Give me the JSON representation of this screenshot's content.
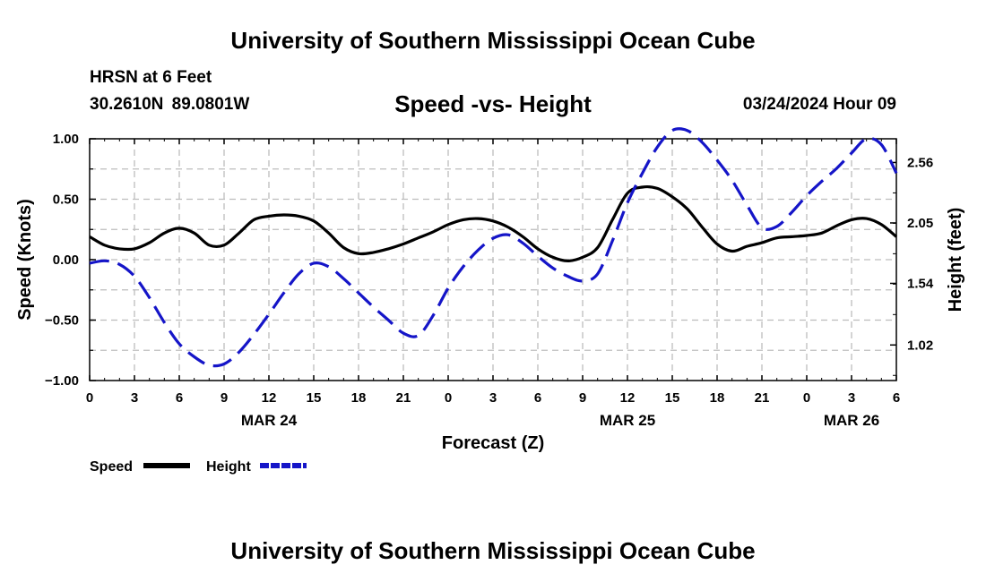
{
  "header": {
    "title": "University of Southern Mississippi Ocean Cube",
    "station": "HRSN at 6 Feet",
    "coords": "30.2610N  89.0801W",
    "subtitle": "Speed -vs- Height",
    "datetime": "03/24/2024 Hour 09",
    "footer_title": "University of Southern Mississippi Ocean Cube"
  },
  "chart_data": {
    "type": "line",
    "xlabel": "Forecast (Z)",
    "ylabel_left": "Speed (Knots)",
    "ylabel_right": "Height (feet)",
    "x_range_hours": [
      0,
      54
    ],
    "x_tick_hours": [
      0,
      3,
      6,
      9,
      12,
      15,
      18,
      21,
      24,
      27,
      30,
      33,
      36,
      39,
      42,
      45,
      48,
      51,
      54
    ],
    "x_tick_labels": [
      "0",
      "3",
      "6",
      "9",
      "12",
      "15",
      "18",
      "21",
      "0",
      "3",
      "6",
      "9",
      "12",
      "15",
      "18",
      "21",
      "0",
      "3",
      "6"
    ],
    "date_labels": [
      {
        "hour": 12,
        "label": "MAR 24"
      },
      {
        "hour": 36,
        "label": "MAR 25"
      },
      {
        "hour": 51,
        "label": "MAR 26"
      }
    ],
    "ylim_left": [
      -1.0,
      1.0
    ],
    "y_ticks_left": [
      -1.0,
      -0.5,
      0.0,
      0.5,
      1.0
    ],
    "y_tick_labels_left": [
      "−1.00",
      "−0.50",
      "0.00",
      "0.50",
      "1.00"
    ],
    "ylim_right": [
      0.72,
      2.76
    ],
    "y_ticks_right": [
      1.02,
      1.54,
      2.05,
      2.56
    ],
    "y_tick_labels_right": [
      "1.02",
      "1.54",
      "2.05",
      "2.56"
    ],
    "grid": true,
    "legend_placement": "bottom-left",
    "series": [
      {
        "name": "Speed",
        "axis": "left",
        "color": "#000000",
        "dash": "solid",
        "x": [
          0,
          1,
          2,
          3,
          4,
          5,
          6,
          7,
          8,
          9,
          10,
          11,
          12,
          13,
          14,
          15,
          16,
          17,
          18,
          19,
          20,
          21,
          22,
          23,
          24,
          25,
          26,
          27,
          28,
          29,
          30,
          31,
          32,
          33,
          34,
          35,
          36,
          37,
          38,
          39,
          40,
          41,
          42,
          43,
          44,
          45,
          46,
          47,
          48,
          49,
          50,
          51,
          52,
          53,
          54
        ],
        "values": [
          0.19,
          0.12,
          0.09,
          0.09,
          0.14,
          0.22,
          0.26,
          0.22,
          0.12,
          0.12,
          0.22,
          0.33,
          0.36,
          0.37,
          0.36,
          0.32,
          0.22,
          0.1,
          0.05,
          0.06,
          0.09,
          0.13,
          0.18,
          0.23,
          0.29,
          0.33,
          0.34,
          0.32,
          0.27,
          0.19,
          0.09,
          0.02,
          -0.01,
          0.02,
          0.1,
          0.33,
          0.55,
          0.6,
          0.59,
          0.52,
          0.42,
          0.27,
          0.13,
          0.07,
          0.11,
          0.14,
          0.18,
          0.19,
          0.2,
          0.22,
          0.28,
          0.33,
          0.34,
          0.29,
          0.19
        ]
      },
      {
        "name": "Height",
        "axis": "right",
        "color": "#1515c8",
        "dash": "dashed",
        "x": [
          0,
          1,
          2,
          3,
          4,
          5,
          6,
          7,
          8,
          9,
          10,
          11,
          12,
          13,
          14,
          15,
          16,
          17,
          18,
          19,
          20,
          21,
          22,
          23,
          24,
          25,
          26,
          27,
          28,
          29,
          30,
          31,
          32,
          33,
          34,
          35,
          36,
          37,
          38,
          39,
          40,
          41,
          42,
          43,
          44,
          45,
          46,
          47,
          48,
          49,
          50,
          51,
          52,
          53,
          54
        ],
        "values": [
          1.71,
          1.73,
          1.7,
          1.6,
          1.42,
          1.21,
          1.03,
          0.92,
          0.85,
          0.86,
          0.96,
          1.11,
          1.28,
          1.46,
          1.62,
          1.71,
          1.68,
          1.58,
          1.46,
          1.34,
          1.23,
          1.12,
          1.1,
          1.27,
          1.5,
          1.68,
          1.82,
          1.92,
          1.95,
          1.88,
          1.77,
          1.67,
          1.6,
          1.56,
          1.62,
          1.9,
          2.22,
          2.47,
          2.69,
          2.83,
          2.83,
          2.73,
          2.58,
          2.41,
          2.2,
          2.01,
          2.02,
          2.14,
          2.28,
          2.4,
          2.51,
          2.64,
          2.76,
          2.71,
          2.47
        ]
      }
    ]
  }
}
